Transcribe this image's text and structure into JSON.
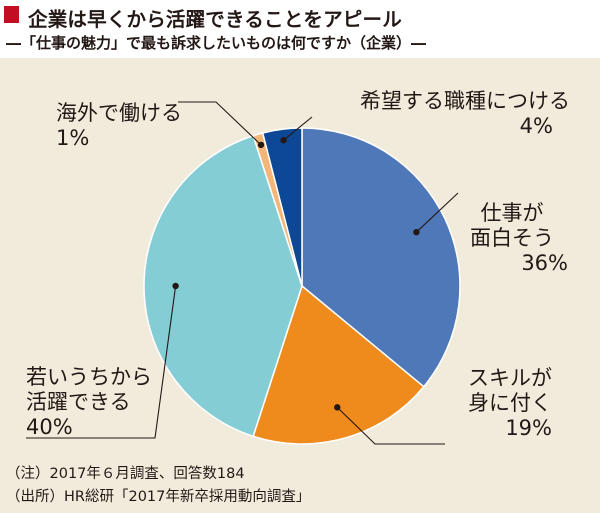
{
  "header": {
    "title": "企業は早くから活躍できることをアピール",
    "subtitle": "―「仕事の魅力」で最も訴求したいものは何ですか（企業）―"
  },
  "colors": {
    "accent": "#c30d23",
    "background": "#f1ebdc"
  },
  "chart_data": {
    "type": "pie",
    "start": "12 o'clock, clockwise",
    "slices": [
      {
        "name": "仕事が面白そう",
        "line1": "仕事が",
        "line2": "面白そう",
        "value": 36,
        "label": "36%",
        "color": "#4e78b8"
      },
      {
        "name": "スキルが身に付く",
        "line1": "スキルが",
        "line2": "身に付く",
        "value": 19,
        "label": "19%",
        "color": "#ef8a1c"
      },
      {
        "name": "若いうちから活躍できる",
        "line1": "若いうちから",
        "line2": "活躍できる",
        "value": 40,
        "label": "40%",
        "color": "#85cdd5"
      },
      {
        "name": "海外で働ける",
        "line1": "海外で働ける",
        "value": 1,
        "label": "1%",
        "color": "#f3b679"
      },
      {
        "name": "希望する職種につける",
        "line1": "希望する職種につける",
        "value": 4,
        "label": "4%",
        "color": "#0d4896"
      }
    ]
  },
  "notes": {
    "note1": "（注）2017年６月調査、回答数184",
    "note2": "（出所）HR総研「2017年新卒採用動向調査」"
  }
}
